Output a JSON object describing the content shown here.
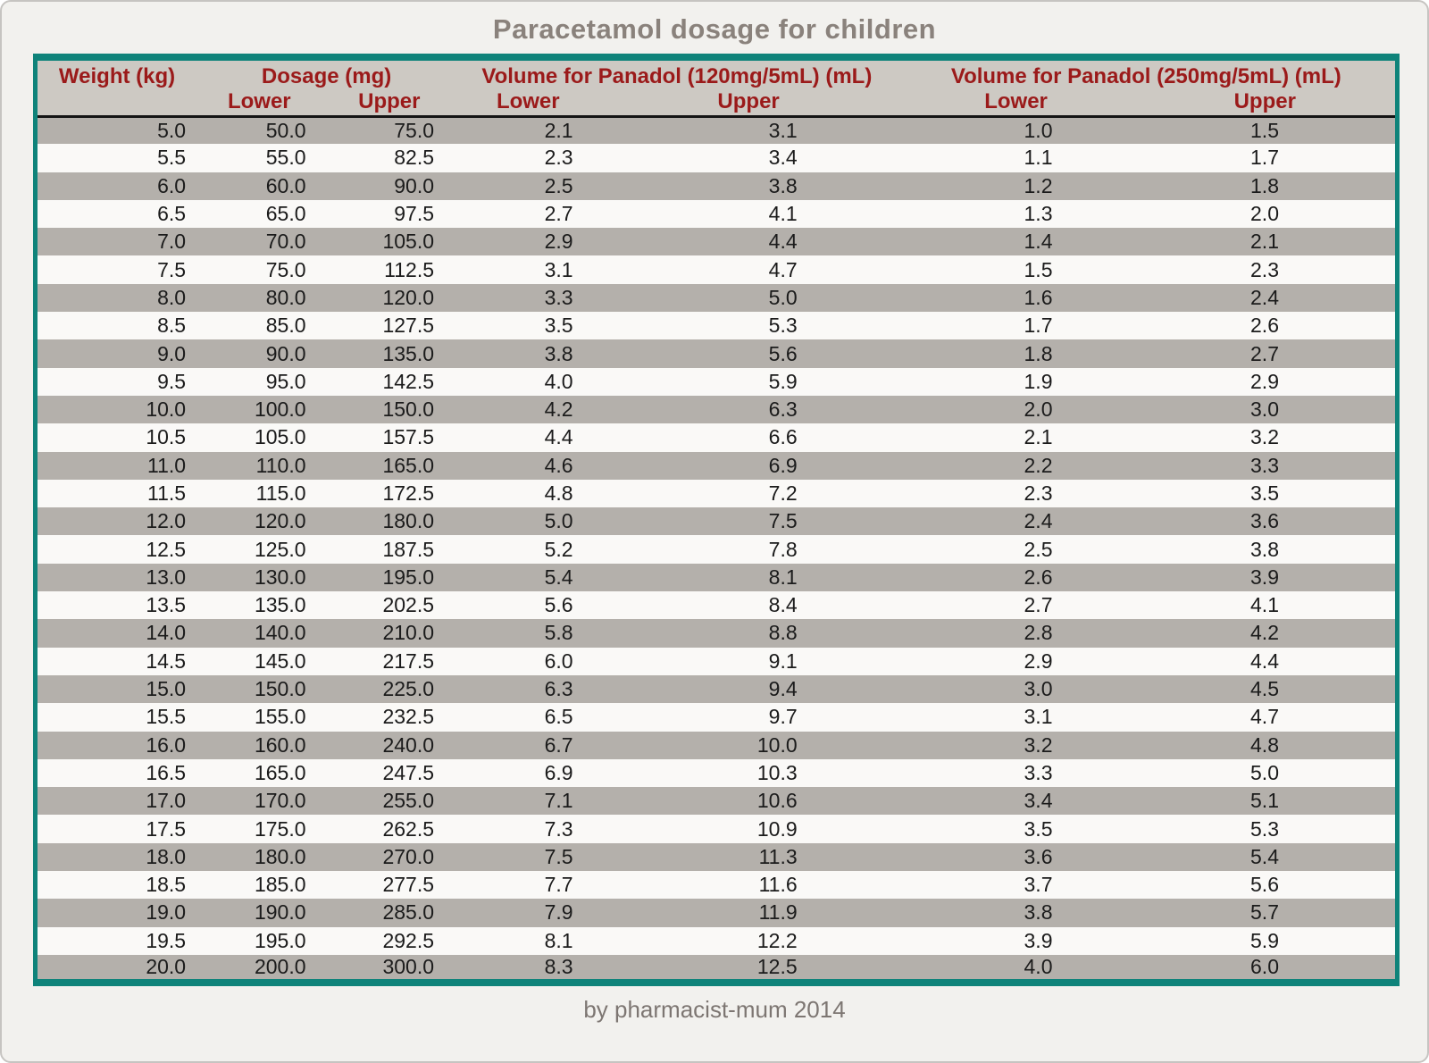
{
  "title": "Paracetamol dosage for children",
  "footer_credit": "by pharmacist-mum 2014",
  "table": {
    "group_headers": [
      "Weight (kg)",
      "Dosage (mg)",
      "Volume for Panadol (120mg/5mL) (mL)",
      "Volume for Panadol (250mg/5mL) (mL)"
    ],
    "sub_headers": [
      "Lower",
      "Upper",
      "Lower",
      "Upper",
      "Lower",
      "Upper"
    ]
  },
  "chart_data": {
    "type": "table",
    "title": "Paracetamol dosage for children",
    "columns": [
      "Weight (kg)",
      "Dosage (mg) Lower",
      "Dosage (mg) Upper",
      "Volume for Panadol (120mg/5mL) (mL) Lower",
      "Volume for Panadol (120mg/5mL) (mL) Upper",
      "Volume for Panadol (250mg/5mL) (mL) Lower",
      "Volume for Panadol (250mg/5mL) (mL) Upper"
    ],
    "value_decimals": 1,
    "rows": [
      [
        5.0,
        50.0,
        75.0,
        2.1,
        3.1,
        1.0,
        1.5
      ],
      [
        5.5,
        55.0,
        82.5,
        2.3,
        3.4,
        1.1,
        1.7
      ],
      [
        6.0,
        60.0,
        90.0,
        2.5,
        3.8,
        1.2,
        1.8
      ],
      [
        6.5,
        65.0,
        97.5,
        2.7,
        4.1,
        1.3,
        2.0
      ],
      [
        7.0,
        70.0,
        105.0,
        2.9,
        4.4,
        1.4,
        2.1
      ],
      [
        7.5,
        75.0,
        112.5,
        3.1,
        4.7,
        1.5,
        2.3
      ],
      [
        8.0,
        80.0,
        120.0,
        3.3,
        5.0,
        1.6,
        2.4
      ],
      [
        8.5,
        85.0,
        127.5,
        3.5,
        5.3,
        1.7,
        2.6
      ],
      [
        9.0,
        90.0,
        135.0,
        3.8,
        5.6,
        1.8,
        2.7
      ],
      [
        9.5,
        95.0,
        142.5,
        4.0,
        5.9,
        1.9,
        2.9
      ],
      [
        10.0,
        100.0,
        150.0,
        4.2,
        6.3,
        2.0,
        3.0
      ],
      [
        10.5,
        105.0,
        157.5,
        4.4,
        6.6,
        2.1,
        3.2
      ],
      [
        11.0,
        110.0,
        165.0,
        4.6,
        6.9,
        2.2,
        3.3
      ],
      [
        11.5,
        115.0,
        172.5,
        4.8,
        7.2,
        2.3,
        3.5
      ],
      [
        12.0,
        120.0,
        180.0,
        5.0,
        7.5,
        2.4,
        3.6
      ],
      [
        12.5,
        125.0,
        187.5,
        5.2,
        7.8,
        2.5,
        3.8
      ],
      [
        13.0,
        130.0,
        195.0,
        5.4,
        8.1,
        2.6,
        3.9
      ],
      [
        13.5,
        135.0,
        202.5,
        5.6,
        8.4,
        2.7,
        4.1
      ],
      [
        14.0,
        140.0,
        210.0,
        5.8,
        8.8,
        2.8,
        4.2
      ],
      [
        14.5,
        145.0,
        217.5,
        6.0,
        9.1,
        2.9,
        4.4
      ],
      [
        15.0,
        150.0,
        225.0,
        6.3,
        9.4,
        3.0,
        4.5
      ],
      [
        15.5,
        155.0,
        232.5,
        6.5,
        9.7,
        3.1,
        4.7
      ],
      [
        16.0,
        160.0,
        240.0,
        6.7,
        10.0,
        3.2,
        4.8
      ],
      [
        16.5,
        165.0,
        247.5,
        6.9,
        10.3,
        3.3,
        5.0
      ],
      [
        17.0,
        170.0,
        255.0,
        7.1,
        10.6,
        3.4,
        5.1
      ],
      [
        17.5,
        175.0,
        262.5,
        7.3,
        10.9,
        3.5,
        5.3
      ],
      [
        18.0,
        180.0,
        270.0,
        7.5,
        11.3,
        3.6,
        5.4
      ],
      [
        18.5,
        185.0,
        277.5,
        7.7,
        11.6,
        3.7,
        5.6
      ],
      [
        19.0,
        190.0,
        285.0,
        7.9,
        11.9,
        3.8,
        5.7
      ],
      [
        19.5,
        195.0,
        292.5,
        8.1,
        12.2,
        3.9,
        5.9
      ],
      [
        20.0,
        200.0,
        300.0,
        8.3,
        12.5,
        4.0,
        6.0
      ]
    ]
  },
  "colors": {
    "teal": "#0f837a",
    "header_bg": "#cdc9c3",
    "header_text": "#9b1a1a",
    "stripe_dark": "#b4b0ab",
    "stripe_light": "#faf9f7",
    "page_bg": "#f2f1ee",
    "title_text": "#8a827c",
    "footer_text": "#7d7672",
    "cell_text": "#1b1b1b",
    "rule_black": "#141414"
  }
}
